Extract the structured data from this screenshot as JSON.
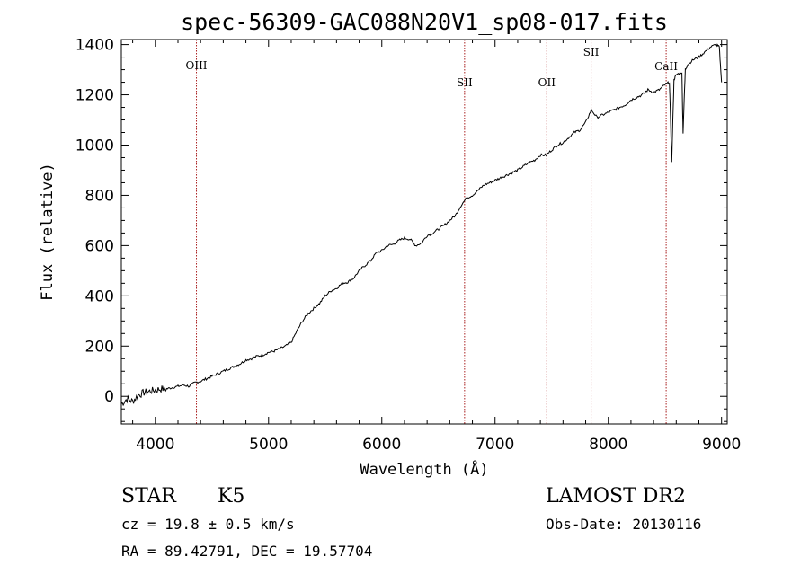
{
  "chart_data": {
    "type": "line",
    "title": "spec-56309-GAC088N20V1_sp08-017.fits",
    "xlabel": "Wavelength (Å)",
    "ylabel": "Flux (relative)",
    "xlim": [
      3700,
      9050
    ],
    "ylim": [
      -110,
      1420
    ],
    "xticks": [
      4000,
      5000,
      6000,
      7000,
      8000,
      9000
    ],
    "yticks": [
      0,
      200,
      400,
      600,
      800,
      1000,
      1200,
      1400
    ],
    "grid": false,
    "series": [
      {
        "x": [
          3700,
          3750,
          3800,
          3850,
          3900,
          3950,
          4000,
          4050,
          4100,
          4150,
          4200,
          4250,
          4300,
          4350,
          4400,
          4450,
          4500,
          4550,
          4600,
          4650,
          4700,
          4750,
          4800,
          4850,
          4900,
          4950,
          5000,
          5050,
          5100,
          5150,
          5200,
          5250,
          5300,
          5350,
          5400,
          5450,
          5500,
          5550,
          5600,
          5650,
          5700,
          5750,
          5800,
          5850,
          5900,
          5950,
          6000,
          6050,
          6100,
          6150,
          6200,
          6250,
          6300,
          6350,
          6400,
          6450,
          6500,
          6550,
          6600,
          6650,
          6700,
          6750,
          6800,
          6850,
          6900,
          6950,
          7000,
          7050,
          7100,
          7150,
          7200,
          7250,
          7300,
          7350,
          7400,
          7450,
          7500,
          7550,
          7600,
          7650,
          7700,
          7750,
          7800,
          7850,
          7900,
          7950,
          8000,
          8050,
          8100,
          8150,
          8200,
          8250,
          8300,
          8350,
          8400,
          8450,
          8500,
          8540,
          8560,
          8580,
          8600,
          8650,
          8660,
          8680,
          8700,
          8750,
          8800,
          8850,
          8900,
          8950,
          8980,
          9000
        ],
        "values": [
          -30,
          -10,
          -20,
          5,
          15,
          20,
          25,
          30,
          30,
          35,
          40,
          45,
          40,
          55,
          60,
          70,
          80,
          90,
          100,
          110,
          120,
          130,
          145,
          150,
          160,
          165,
          175,
          180,
          190,
          200,
          215,
          260,
          300,
          330,
          350,
          370,
          400,
          420,
          430,
          450,
          455,
          470,
          500,
          520,
          540,
          570,
          580,
          600,
          605,
          620,
          630,
          625,
          600,
          610,
          640,
          650,
          665,
          680,
          700,
          720,
          760,
          790,
          800,
          820,
          840,
          850,
          860,
          870,
          880,
          890,
          900,
          915,
          930,
          940,
          960,
          960,
          980,
          1000,
          1010,
          1030,
          1050,
          1060,
          1090,
          1140,
          1110,
          1120,
          1130,
          1140,
          1150,
          1160,
          1180,
          1190,
          1200,
          1220,
          1210,
          1220,
          1240,
          1250,
          930,
          1260,
          1280,
          1290,
          1050,
          1300,
          1320,
          1340,
          1350,
          1370,
          1390,
          1400,
          1390,
          1250
        ]
      }
    ],
    "annotations": {
      "lines": [
        {
          "label": "OIII",
          "x": 4363
        },
        {
          "label": "SII",
          "x": 6731
        },
        {
          "label": "OII",
          "x": 7457
        },
        {
          "label": "SII",
          "x": 7848
        },
        {
          "label": "CaII",
          "x": 8511
        }
      ]
    }
  },
  "footer": {
    "object_type": "STAR",
    "subclass": "K5",
    "survey": "LAMOST DR2",
    "cz": "cz = 19.8 ± 0.5 km/s",
    "obs_date": "Obs-Date: 20130116",
    "coords": "RA =  89.42791, DEC =  19.57704"
  },
  "colors": {
    "spectrum": "#000000",
    "line_markers": "#aa2222",
    "axes": "#000000"
  }
}
